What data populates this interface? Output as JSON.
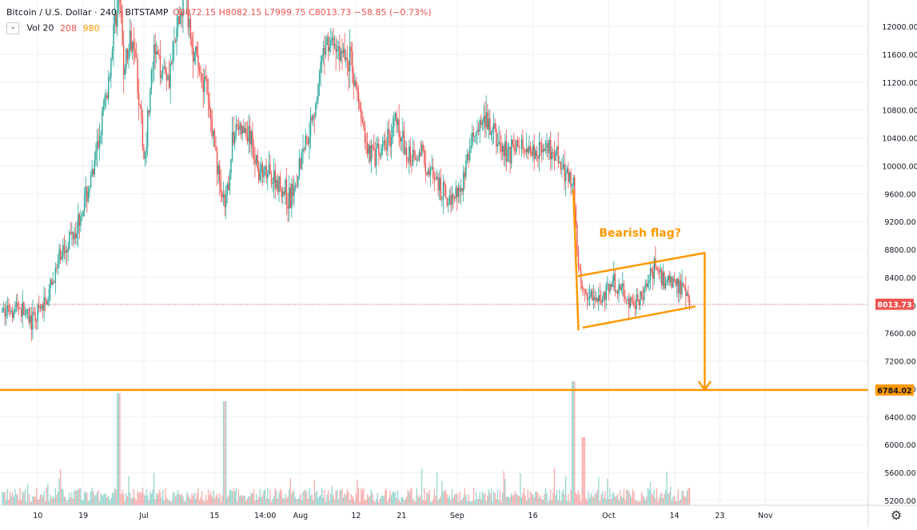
{
  "header": {
    "symbol": "Bitcoin / U.S. Dollar · 240 · BITSTAMP",
    "ohlc": "O8072.15 H8082.15 L7999.75 C8013.73 −58.85 (−0.73%)"
  },
  "volume_legend": {
    "label": "Vol 20",
    "value1": "208",
    "value2": "980"
  },
  "colors": {
    "up": "#26a69a",
    "down": "#ef5350",
    "annotation": "#ff9800",
    "price_line": "#ef5350",
    "grid": "#eef0f3"
  },
  "chart_data": {
    "type": "candlestick",
    "title": "Bitcoin / U.S. Dollar · 240 · BITSTAMP",
    "y_ticks": [
      "12000.00",
      "11600.00",
      "11200.00",
      "10800.00",
      "10400.00",
      "10000.00",
      "9600.00",
      "9200.00",
      "8800.00",
      "8400.00",
      "8000.00",
      "7600.00",
      "7200.00",
      "6800.00",
      "6400.00",
      "6000.00",
      "5600.00",
      "5200.00"
    ],
    "x_ticks": [
      "10",
      "19",
      "Jul",
      "15",
      "14:00",
      "Aug",
      "12",
      "21",
      "Sep",
      "16",
      "Oct",
      "14",
      "23",
      "Nov"
    ],
    "price_axis_range": [
      5100,
      12650
    ],
    "current_price": {
      "label": "8013.73",
      "value": 8013.73
    },
    "target_level": {
      "label": "6784.02",
      "value": 6784.02
    },
    "annotation_text": "Bearish flag?",
    "price_path": [
      [
        "Jun 03",
        7900
      ],
      [
        "Jun 06",
        8000
      ],
      [
        "Jun 09",
        7750
      ],
      [
        "Jun 12",
        8100
      ],
      [
        "Jun 15",
        8800
      ],
      [
        "Jun 18",
        9200
      ],
      [
        "Jun 21",
        9900
      ],
      [
        "Jun 24",
        11200
      ],
      [
        "Jun 26",
        12600
      ],
      [
        "Jun 27",
        11400
      ],
      [
        "Jun 29",
        11900
      ],
      [
        "Jul 01",
        10100
      ],
      [
        "Jul 03",
        11600
      ],
      [
        "Jul 06",
        11300
      ],
      [
        "Jul 09",
        12500
      ],
      [
        "Jul 11",
        11600
      ],
      [
        "Jul 13",
        11200
      ],
      [
        "Jul 15",
        10300
      ],
      [
        "Jul 17",
        9300
      ],
      [
        "Jul 19",
        10600
      ],
      [
        "Jul 22",
        10400
      ],
      [
        "Jul 24",
        9900
      ],
      [
        "Jul 27",
        9800
      ],
      [
        "Jul 30",
        9500
      ],
      [
        "Aug 01",
        10100
      ],
      [
        "Aug 04",
        10900
      ],
      [
        "Aug 06",
        11800
      ],
      [
        "Aug 08",
        11700
      ],
      [
        "Aug 11",
        11500
      ],
      [
        "Aug 14",
        10300
      ],
      [
        "Aug 16",
        10100
      ],
      [
        "Aug 18",
        10300
      ],
      [
        "Aug 20",
        10700
      ],
      [
        "Aug 22",
        10100
      ],
      [
        "Aug 25",
        10200
      ],
      [
        "Aug 28",
        9700
      ],
      [
        "Aug 30",
        9500
      ],
      [
        "Sep 02",
        9750
      ],
      [
        "Sep 04",
        10400
      ],
      [
        "Sep 07",
        10600
      ],
      [
        "Sep 10",
        10200
      ],
      [
        "Sep 13",
        10300
      ],
      [
        "Sep 16",
        10250
      ],
      [
        "Sep 19",
        10200
      ],
      [
        "Sep 22",
        10000
      ],
      [
        "Sep 24",
        9700
      ],
      [
        "Sep 25",
        8500
      ],
      [
        "Sep 26",
        8200
      ],
      [
        "Sep 29",
        8100
      ],
      [
        "Oct 02",
        8300
      ],
      [
        "Oct 06",
        8000
      ],
      [
        "Oct 08",
        8200
      ],
      [
        "Oct 10",
        8550
      ],
      [
        "Oct 12",
        8350
      ],
      [
        "Oct 14",
        8350
      ],
      [
        "Oct 17",
        8013.73
      ]
    ],
    "trend_lines": [
      {
        "name": "drop-leg",
        "from": [
          "Sep 24",
          9650
        ],
        "to": [
          "Sep 25",
          7650
        ]
      },
      {
        "name": "flag-top",
        "from": [
          "Sep 25",
          8420
        ],
        "to": [
          "Oct 20",
          8750
        ]
      },
      {
        "name": "flag-right",
        "from": [
          "Oct 20",
          8750
        ],
        "to": [
          "Oct 20",
          7900
        ]
      },
      {
        "name": "flag-bottom",
        "from": [
          "Sep 26",
          7680
        ],
        "to": [
          "Oct 18",
          7980
        ]
      },
      {
        "name": "projection",
        "from": [
          "Oct 20",
          7900
        ],
        "to": [
          "Oct 20",
          6784.02
        ]
      }
    ],
    "grid": true
  }
}
